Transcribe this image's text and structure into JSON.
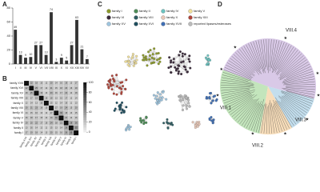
{
  "panels": {
    "a": "A",
    "b": "B",
    "c": "C",
    "d": "D"
  },
  "chart_data": [
    {
      "type": "bar",
      "categories": [
        "I",
        "II",
        "III",
        "IV",
        "V",
        "VI",
        "VII",
        "VIII",
        "IX",
        "X",
        "XI",
        "XII",
        "XIII",
        "XIV",
        "XV"
      ],
      "values": [
        49,
        13,
        9,
        10,
        27,
        27,
        13,
        74,
        3,
        9,
        5,
        27,
        63,
        21,
        7
      ],
      "color": "#333333",
      "ylim": [
        0,
        80
      ],
      "yticks": [
        0,
        20,
        40,
        60,
        80
      ]
    },
    {
      "type": "heatmap",
      "rows": [
        "family XVII",
        "family XVI",
        "family XV",
        "family XIII",
        "family X",
        "family VIII",
        "family VI",
        "family V",
        "family IV",
        "family II",
        "family I"
      ],
      "values": [
        [
          100,
          22,
          18,
          15,
          12,
          20,
          14,
          16,
          19,
          13,
          17
        ],
        [
          22,
          100,
          25,
          17,
          14,
          21,
          15,
          18,
          20,
          16,
          19
        ],
        [
          18,
          25,
          100,
          19,
          13,
          23,
          16,
          17,
          22,
          14,
          18
        ],
        [
          15,
          17,
          19,
          100,
          16,
          18,
          13,
          15,
          17,
          12,
          14
        ],
        [
          12,
          14,
          13,
          16,
          100,
          15,
          12,
          14,
          16,
          11,
          13
        ],
        [
          20,
          21,
          23,
          18,
          15,
          100,
          17,
          19,
          24,
          15,
          20
        ],
        [
          14,
          15,
          16,
          13,
          12,
          17,
          100,
          30,
          18,
          13,
          15
        ],
        [
          16,
          18,
          17,
          15,
          14,
          19,
          30,
          100,
          21,
          14,
          16
        ],
        [
          19,
          20,
          22,
          17,
          16,
          24,
          18,
          21,
          100,
          28,
          26
        ],
        [
          13,
          16,
          14,
          12,
          11,
          15,
          13,
          14,
          28,
          100,
          35
        ],
        [
          17,
          19,
          18,
          14,
          13,
          20,
          15,
          16,
          26,
          35,
          100
        ]
      ],
      "colorbar_lim": [
        0,
        100
      ],
      "colorbar_ticks": [
        0,
        20,
        40,
        60,
        80,
        100
      ]
    },
    {
      "type": "network",
      "series": [
        {
          "name": "family I",
          "color": "#8c9a2b"
        },
        {
          "name": "family II",
          "color": "#4d8c57"
        },
        {
          "name": "family IV",
          "color": "#6cc3c0"
        },
        {
          "name": "family V",
          "color": "#f0df9a"
        },
        {
          "name": "family VI",
          "color": "#3a2a3a"
        },
        {
          "name": "family VIII",
          "color": "#2f5d62"
        },
        {
          "name": "family X",
          "color": "#e8c8b8"
        },
        {
          "name": "family XIII",
          "color": "#b0453a"
        },
        {
          "name": "family XV",
          "color": "#9ec5df"
        },
        {
          "name": "family XVI",
          "color": "#1f4e5f"
        },
        {
          "name": "family XVII",
          "color": "#3f6fb5"
        },
        {
          "name": "reported lipases/esterases",
          "color": "#bbbbbb"
        }
      ]
    }
  ],
  "tree": {
    "clades": [
      {
        "label": "VIII.1",
        "color": "#b9e0b0"
      },
      {
        "label": "VIII.2",
        "color": "#f6d7ae"
      },
      {
        "label": "VIII.3",
        "color": "#b9d8ea"
      },
      {
        "label": "VIII.4",
        "color": "#d2c0e3"
      }
    ]
  }
}
